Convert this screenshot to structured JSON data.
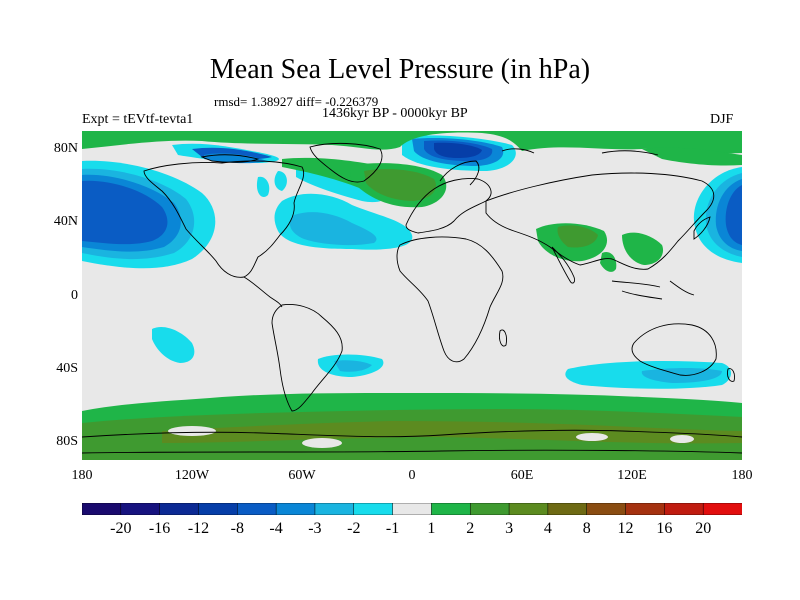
{
  "title": "Mean Sea Level Pressure (in hPa)",
  "stats": "rmsd= 1.38927  diff= -0.226379",
  "experiment": "Expt = tEVtf-tevta1",
  "period": "1436kyr BP - 0000kyr BP",
  "season": "DJF",
  "axes": {
    "lat_ticks": [
      "80N",
      "40N",
      "0",
      "40S",
      "80S"
    ],
    "lon_ticks": [
      "180",
      "120W",
      "60W",
      "0",
      "60E",
      "120E",
      "180"
    ]
  },
  "legend": {
    "labels": [
      "-20",
      "-16",
      "-12",
      "-8",
      "-4",
      "-3",
      "-2",
      "-1",
      "1",
      "2",
      "3",
      "4",
      "8",
      "12",
      "16",
      "20"
    ],
    "colors": [
      "#1a0a6e",
      "#17137f",
      "#0c2a94",
      "#063ea8",
      "#0a5cc4",
      "#0a86d6",
      "#1ab4e0",
      "#18dcec",
      "#e8e8e8",
      "#1fb548",
      "#3f9a30",
      "#5c8b20",
      "#6e6a14",
      "#8a4d12",
      "#a53210",
      "#c01c10",
      "#e20e0e"
    ]
  },
  "colors": {
    "background": "#e8e8e8",
    "coast": "#000000"
  }
}
